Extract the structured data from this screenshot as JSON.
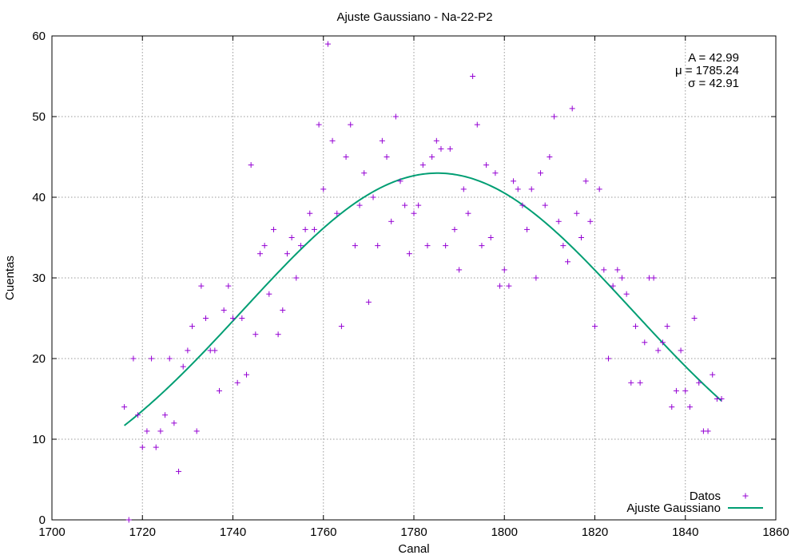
{
  "chart_data": {
    "type": "scatter",
    "title": "Ajuste Gaussiano - Na-22-P2",
    "xlabel": "Canal",
    "ylabel": "Cuentas",
    "xlim": [
      1700,
      1860
    ],
    "ylim": [
      0,
      60
    ],
    "xticks": [
      1700,
      1720,
      1740,
      1760,
      1780,
      1800,
      1820,
      1840,
      1860
    ],
    "yticks": [
      0,
      10,
      20,
      30,
      40,
      50,
      60
    ],
    "grid": true,
    "legend_position": "bottom-right",
    "annotations": [
      "A = 42.99",
      "μ = 1785.24",
      "σ = 42.91"
    ],
    "series": [
      {
        "name": "Datos",
        "type": "scatter",
        "marker": "plus",
        "color": "#9400d3",
        "x": [
          1716,
          1717,
          1718,
          1719,
          1720,
          1721,
          1722,
          1723,
          1724,
          1725,
          1726,
          1727,
          1728,
          1729,
          1730,
          1731,
          1732,
          1733,
          1734,
          1735,
          1736,
          1737,
          1738,
          1739,
          1740,
          1741,
          1742,
          1743,
          1744,
          1745,
          1746,
          1747,
          1748,
          1749,
          1750,
          1751,
          1752,
          1753,
          1754,
          1755,
          1756,
          1757,
          1758,
          1759,
          1760,
          1761,
          1762,
          1763,
          1764,
          1765,
          1766,
          1767,
          1768,
          1769,
          1770,
          1771,
          1772,
          1773,
          1774,
          1775,
          1776,
          1777,
          1778,
          1779,
          1780,
          1781,
          1782,
          1783,
          1784,
          1785,
          1786,
          1787,
          1788,
          1789,
          1790,
          1791,
          1792,
          1793,
          1794,
          1795,
          1796,
          1797,
          1798,
          1799,
          1800,
          1801,
          1802,
          1803,
          1804,
          1805,
          1806,
          1807,
          1808,
          1809,
          1810,
          1811,
          1812,
          1813,
          1814,
          1815,
          1816,
          1817,
          1818,
          1819,
          1820,
          1821,
          1822,
          1823,
          1824,
          1825,
          1826,
          1827,
          1828,
          1829,
          1830,
          1831,
          1832,
          1833,
          1834,
          1835,
          1836,
          1837,
          1838,
          1839,
          1840,
          1841,
          1842,
          1843,
          1844,
          1845,
          1846,
          1847,
          1848
        ],
        "y": [
          14,
          0,
          20,
          13,
          9,
          11,
          20,
          9,
          11,
          13,
          20,
          12,
          6,
          19,
          21,
          24,
          11,
          29,
          25,
          21,
          21,
          16,
          26,
          29,
          25,
          17,
          25,
          18,
          44,
          23,
          33,
          34,
          28,
          36,
          23,
          26,
          33,
          35,
          30,
          34,
          36,
          38,
          36,
          49,
          41,
          59,
          47,
          38,
          24,
          45,
          49,
          34,
          39,
          43,
          27,
          40,
          34,
          47,
          45,
          37,
          50,
          42,
          39,
          33,
          38,
          39,
          44,
          34,
          45,
          47,
          46,
          34,
          46,
          36,
          31,
          41,
          38,
          55,
          49,
          34,
          44,
          35,
          43,
          29,
          31,
          29,
          42,
          41,
          39,
          36,
          41,
          30,
          43,
          39,
          45,
          50,
          37,
          34,
          32,
          51,
          38,
          35,
          42,
          37,
          24,
          41,
          31,
          20,
          29,
          31,
          30,
          28,
          17,
          24,
          17,
          22,
          30,
          30,
          21,
          22,
          24,
          14,
          16,
          21,
          16,
          14,
          25,
          17,
          11,
          11,
          18,
          15,
          15
        ]
      },
      {
        "name": "Ajuste Gaussiano",
        "type": "line",
        "color": "#009e73",
        "model": {
          "A": 42.99,
          "mu": 1785.24,
          "sigma": 42.91,
          "x_start": 1716,
          "x_end": 1848
        }
      }
    ]
  }
}
